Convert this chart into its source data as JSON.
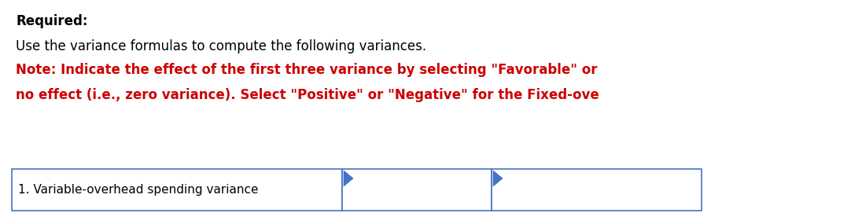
{
  "bg_color": "#ffffff",
  "title_bold": "Required:",
  "title_bold_color": "#000000",
  "title_bold_size": 12,
  "line1": "Use the variance formulas to compute the following variances.",
  "line1_color": "#000000",
  "line1_size": 12,
  "line2": "Note: Indicate the effect of the first three variance by selecting \"Favorable\" or",
  "line2_color": "#cc0000",
  "line2_size": 12,
  "line3": "no effect (i.e., zero variance). Select \"Positive\" or \"Negative\" for the Fixed-ove",
  "line3_color": "#cc0000",
  "line3_size": 12,
  "row_label": "1. Variable-overhead spending variance",
  "row_label_size": 11,
  "row_label_color": "#000000",
  "box_border_color": "#4472c4",
  "box_fill_color": "#ffffff",
  "arrow_color": "#4472c4"
}
